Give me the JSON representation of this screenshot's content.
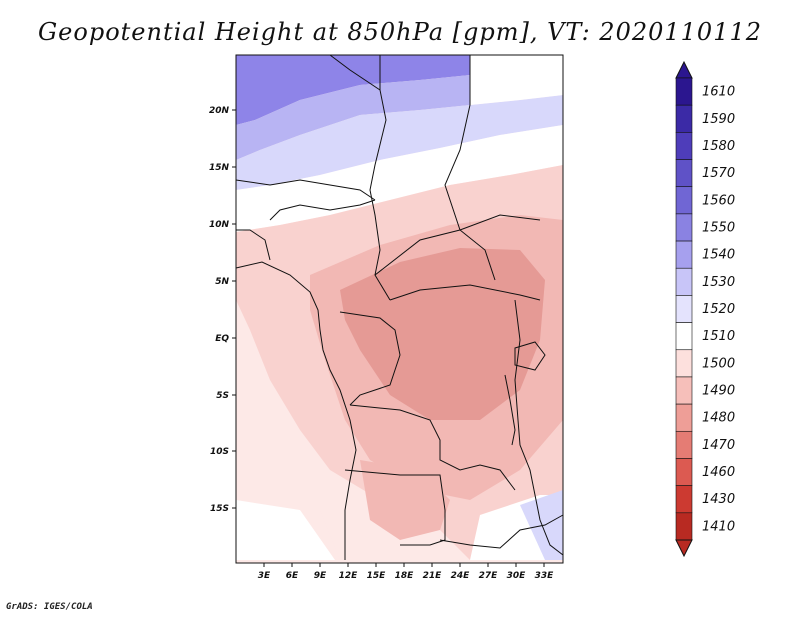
{
  "title": "Geopotential Height at 850hPa [gpm], VT: 2020110112",
  "credit": "GrADS: IGES/COLA",
  "map": {
    "x_ticks": [
      "3E",
      "6E",
      "9E",
      "12E",
      "15E",
      "18E",
      "21E",
      "24E",
      "27E",
      "30E",
      "33E"
    ],
    "y_ticks": [
      "20N",
      "15N",
      "10N",
      "5N",
      "EQ",
      "5S",
      "10S",
      "15S"
    ],
    "colors": {
      "very_low": "#e59a95",
      "low": "#f2b8b4",
      "mid": "#f9d2cf",
      "light": "#fde9e7",
      "neutral": "#ffffff",
      "cool_1": "#d8d8fb",
      "cool_2": "#b8b4f3",
      "cool_3": "#8e84e8"
    }
  },
  "colorbar": {
    "levels": [
      "1610",
      "1590",
      "1580",
      "1570",
      "1560",
      "1550",
      "1540",
      "1530",
      "1520",
      "1510",
      "1500",
      "1490",
      "1480",
      "1470",
      "1460",
      "1430",
      "1410"
    ],
    "colors": [
      "#2b168f",
      "#3b2aa6",
      "#4e3dba",
      "#5f52c7",
      "#7066d4",
      "#8a82e2",
      "#a6a0ee",
      "#c8c5f8",
      "#e4e3fd",
      "#ffffff",
      "#fde0dd",
      "#f6bfba",
      "#ee9e97",
      "#e57c74",
      "#dc5a51",
      "#cc3a31",
      "#b82a22"
    ]
  }
}
